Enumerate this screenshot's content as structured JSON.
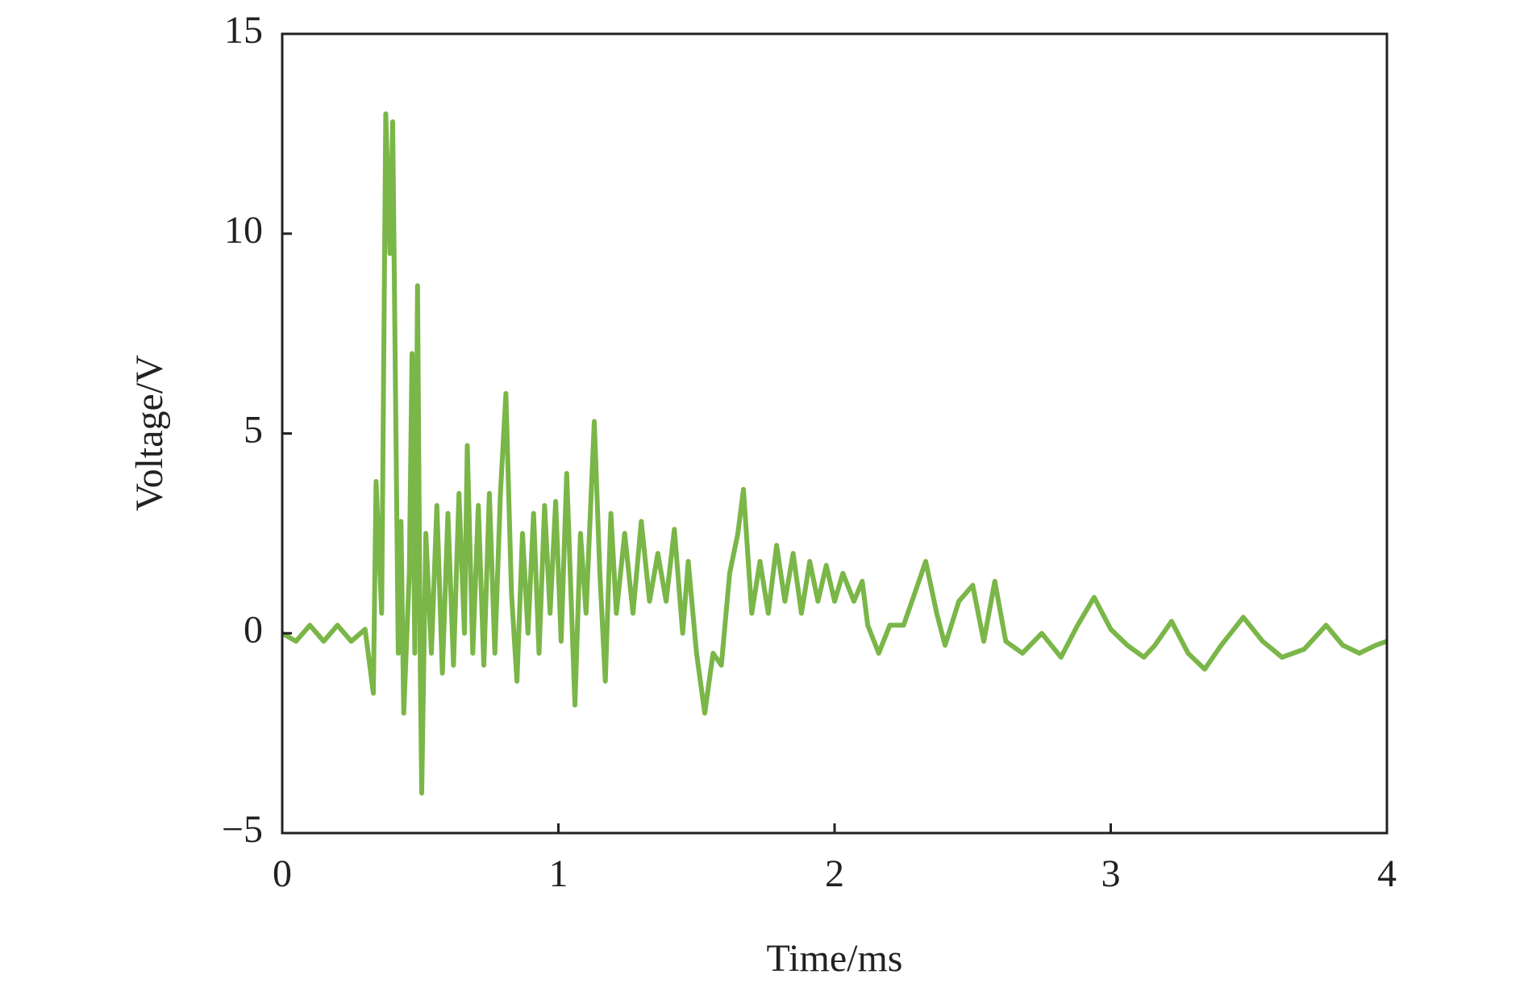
{
  "chart_data": {
    "type": "line",
    "x_label": "Time/ms",
    "y_label": "Voltage/V",
    "x": [
      0,
      0.05,
      0.1,
      0.15,
      0.2,
      0.25,
      0.3,
      0.33,
      0.34,
      0.36,
      0.375,
      0.39,
      0.4,
      0.42,
      0.43,
      0.44,
      0.46,
      0.47,
      0.48,
      0.49,
      0.5,
      0.505,
      0.52,
      0.54,
      0.56,
      0.58,
      0.6,
      0.62,
      0.64,
      0.66,
      0.67,
      0.69,
      0.71,
      0.73,
      0.75,
      0.77,
      0.79,
      0.81,
      0.83,
      0.85,
      0.87,
      0.89,
      0.91,
      0.93,
      0.95,
      0.97,
      0.99,
      1.01,
      1.03,
      1.06,
      1.08,
      1.1,
      1.13,
      1.15,
      1.17,
      1.19,
      1.21,
      1.24,
      1.27,
      1.3,
      1.33,
      1.36,
      1.39,
      1.42,
      1.45,
      1.47,
      1.5,
      1.53,
      1.56,
      1.59,
      1.62,
      1.65,
      1.67,
      1.7,
      1.73,
      1.76,
      1.79,
      1.82,
      1.85,
      1.88,
      1.91,
      1.94,
      1.97,
      2.0,
      2.03,
      2.07,
      2.1,
      2.12,
      2.16,
      2.2,
      2.25,
      2.3,
      2.33,
      2.37,
      2.4,
      2.45,
      2.5,
      2.54,
      2.58,
      2.62,
      2.68,
      2.75,
      2.82,
      2.88,
      2.94,
      3.0,
      3.06,
      3.12,
      3.16,
      3.22,
      3.28,
      3.34,
      3.4,
      3.48,
      3.55,
      3.62,
      3.7,
      3.78,
      3.84,
      3.9,
      3.96,
      4.0
    ],
    "series": [
      {
        "name": "Voltage",
        "color": "#7ab648",
        "values": [
          0,
          -0.2,
          0.2,
          -0.2,
          0.2,
          -0.2,
          0.1,
          -1.5,
          3.8,
          0.5,
          13,
          9.5,
          12.8,
          -0.5,
          2.8,
          -2.0,
          1.5,
          7,
          -0.5,
          8.7,
          -1,
          -4,
          2.5,
          -0.5,
          3.2,
          -1.0,
          3,
          -0.8,
          3.5,
          0,
          4.7,
          -0.5,
          3.2,
          -0.8,
          3.5,
          -0.5,
          3.5,
          6,
          1,
          -1.2,
          2.5,
          0,
          3,
          -0.5,
          3.2,
          0.5,
          3.3,
          -0.2,
          4,
          -1.8,
          2.5,
          0.5,
          5.3,
          1.5,
          -1.2,
          3,
          0.5,
          2.5,
          0.5,
          2.8,
          0.8,
          2,
          0.8,
          2.6,
          0,
          1.8,
          -0.5,
          -2,
          -0.5,
          -0.8,
          1.5,
          2.5,
          3.6,
          0.5,
          1.8,
          0.5,
          2.2,
          0.8,
          2,
          0.5,
          1.8,
          0.8,
          1.7,
          0.8,
          1.5,
          0.8,
          1.3,
          0.2,
          -0.5,
          0.2,
          0.2,
          1.2,
          1.8,
          0.5,
          -0.3,
          0.8,
          1.2,
          -0.2,
          1.3,
          -0.2,
          -0.5,
          0,
          -0.6,
          0.2,
          0.9,
          0.1,
          -0.3,
          -0.6,
          -0.3,
          0.3,
          -0.5,
          -0.9,
          -0.3,
          0.4,
          -0.2,
          -0.6,
          -0.4,
          0.2,
          -0.3,
          -0.5,
          -0.3,
          -0.2
        ]
      }
    ],
    "xlim": [
      0,
      4
    ],
    "xticks": [
      0,
      1,
      2,
      3,
      4
    ],
    "ylim": [
      -5,
      15
    ],
    "yticks": [
      {
        "value": -5,
        "label": "−5"
      },
      0,
      5,
      10,
      15
    ]
  }
}
